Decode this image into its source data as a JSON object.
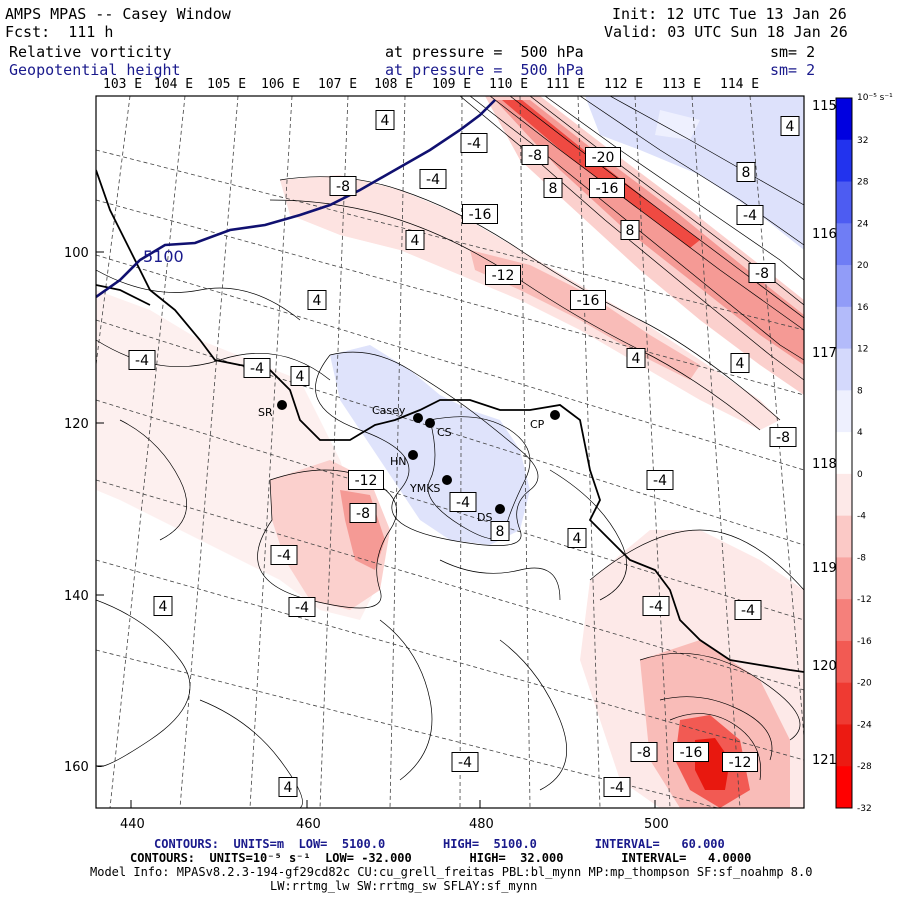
{
  "header": {
    "title": "AMPS MPAS -- Casey Window",
    "forecast": "Fcst:  111 h",
    "init": "Init: 12 UTC Tue 13 Jan 26",
    "valid": "Valid: 03 UTC Sun 18 Jan 26",
    "field1_name": "Relative vorticity",
    "field1_level": "at pressure =  500 hPa",
    "field1_smooth": "sm= 2",
    "field2_name": "Geopotential height",
    "field2_level": "at pressure =  500 hPa",
    "field2_smooth": "sm= 2"
  },
  "top_longitudes": [
    "103 E",
    "104 E",
    "105 E",
    "106 E",
    "107 E",
    "108 E",
    "109 E",
    "110 E",
    "111 E",
    "112 E",
    "113 E",
    "114 E"
  ],
  "right_longitudes": [
    "115 E",
    "116 E",
    "117 E",
    "118 E",
    "119 E",
    "120 E",
    "121 E"
  ],
  "x_ticks": [
    "440",
    "460",
    "480",
    "500"
  ],
  "y_ticks": [
    "100",
    "120",
    "140",
    "160"
  ],
  "colorbar": {
    "unit_label": "10⁻⁵ s⁻¹",
    "labels": [
      "32",
      "28",
      "24",
      "20",
      "16",
      "12",
      "8",
      "4",
      "0",
      "-4",
      "-8",
      "-12",
      "-16",
      "-20",
      "-24",
      "-28",
      "-32"
    ],
    "colors": [
      "#0000e0",
      "#2233ee",
      "#4d5cf2",
      "#6f7df5",
      "#919cf8",
      "#b3bbfa",
      "#d4d9fc",
      "#eef0fe",
      "#ffffff",
      "#fde9e8",
      "#fbc9c6",
      "#f8a6a2",
      "#f5807b",
      "#f25a53",
      "#ef3a32",
      "#ec1a12",
      "#ff0000"
    ]
  },
  "stations": [
    {
      "label": "SR"
    },
    {
      "label": "Casey"
    },
    {
      "label": "CS"
    },
    {
      "label": "CP"
    },
    {
      "label": "HN"
    },
    {
      "label": "YMKS"
    },
    {
      "label": "DS"
    }
  ],
  "contour_labels": [
    "4",
    "-4",
    "-8",
    "-20",
    "8",
    "-16",
    "8",
    "-4",
    "-8",
    "-16",
    "8",
    "-4",
    "4",
    "4",
    "-8",
    "-12",
    "-16",
    "4",
    "4",
    "4",
    "-4",
    "4",
    "-4",
    "-8",
    "-12",
    "-8",
    "-4",
    "-4",
    "8",
    "4",
    "-4",
    "-4",
    "4",
    "-4",
    "-4",
    "-8",
    "-16",
    "-12",
    "-4",
    "-4",
    "4"
  ],
  "height_label": "5100",
  "footer": {
    "line1": "CONTOURS:  UNITS=m  LOW=  5100.0        HIGH=  5100.0        INTERVAL=   60.000",
    "line2": "CONTOURS:  UNITS=10⁻⁵ s⁻¹  LOW= -32.000        HIGH=  32.000        INTERVAL=   4.0000",
    "line3": "Model Info: MPASv8.2.3-194-gf29cd82c CU:cu_grell_freitas PBL:bl_mynn MP:mp_thompson SF:sf_noahmp 8.0",
    "line4": "LW:rrtmg_lw SW:rrtmg_sw SFLAY:sf_mynn"
  }
}
